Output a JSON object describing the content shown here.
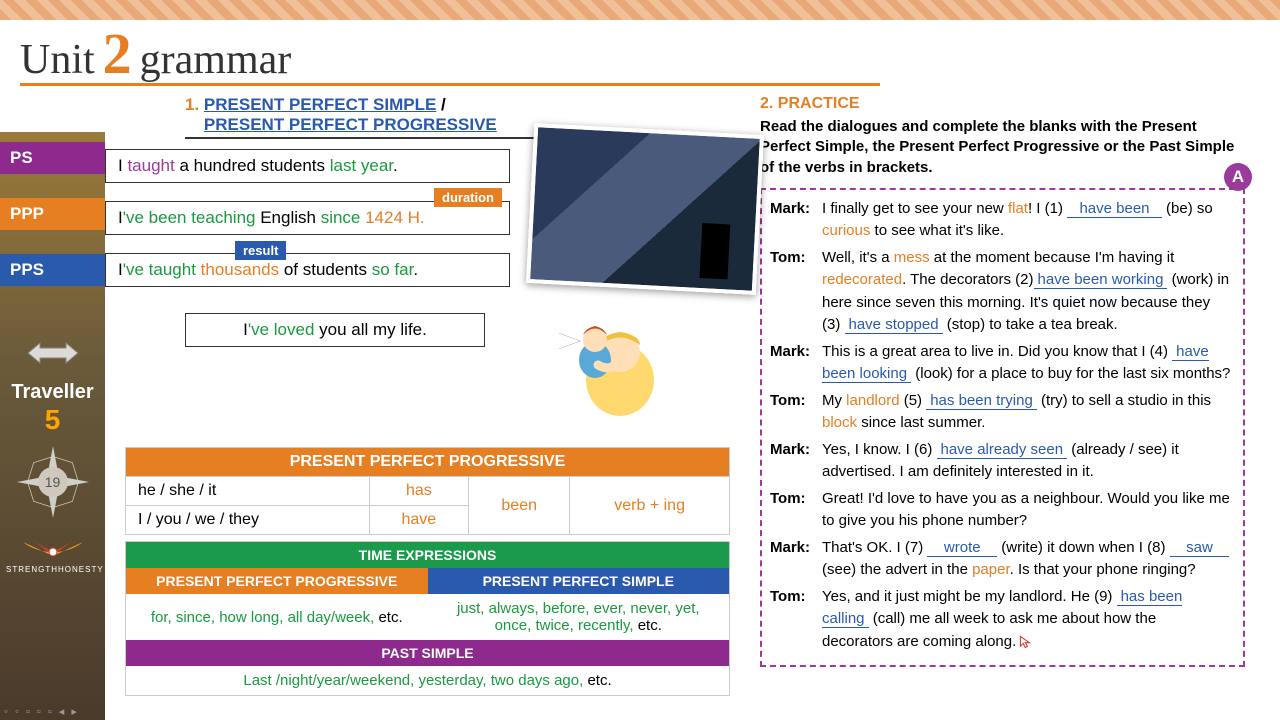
{
  "header": {
    "unit": "Unit",
    "num": "2",
    "title": "grammar"
  },
  "sidebar": {
    "badges": [
      "PS",
      "PPP",
      "PPS"
    ],
    "traveller": "Traveller",
    "traveller_num": "5",
    "page": "19",
    "motto_left": "STRENGTH",
    "motto_right": "HONESTY"
  },
  "section1": {
    "num": "1.",
    "title_a": "PRESENT PERFECT SIMPLE",
    "sep": " / ",
    "title_b": "PRESENT PERFECT PROGRESSIVE",
    "examples": {
      "ps": {
        "pre": "I ",
        "verb": "taught",
        "mid": " a hundred students ",
        "time": "last year",
        "post": "."
      },
      "ppp": {
        "pre": "I",
        "aux": "'ve been teaching",
        "mid": " English ",
        "since": "since",
        "year": " 1424 H.",
        "tag": "duration"
      },
      "pps": {
        "pre": "I",
        "aux": "'ve taught ",
        "highlight": "thousands",
        "mid": " of students ",
        "time": "so far",
        "post": ".",
        "tag": "result"
      },
      "love": {
        "pre": "I",
        "aux": "'ve loved",
        "post": " you all my life."
      }
    }
  },
  "ppp_table": {
    "title": "PRESENT PERFECT PROGRESSIVE",
    "rows": [
      {
        "subj": "he / she / it",
        "aux": "has"
      },
      {
        "subj": "I / you / we / they",
        "aux": "have"
      }
    ],
    "been": "been",
    "verbing": "verb + ing"
  },
  "time_expr": {
    "title": "TIME EXPRESSIONS",
    "ppp_head": "PRESENT PERFECT PROGRESSIVE",
    "pps_head": "PRESENT PERFECT SIMPLE",
    "ppp_body_g": "for, since, how long, all day/week,",
    "ppp_body_etc": " etc.",
    "pps_body_g": "just, always, before, ever, never, yet, once, twice, recently,",
    "pps_body_etc": " etc.",
    "past_head": "PAST SIMPLE",
    "past_body_g": "Last /night/year/weekend, yesterday, two days ago,",
    "past_body_etc": " etc."
  },
  "practice": {
    "title": "2. PRACTICE",
    "inst": "Read the dialogues and complete the blanks with the Present Perfect Simple, the Present Perfect Progressive or the Past Simple of the verbs in brackets.",
    "badge": "A",
    "dlg": [
      {
        "sp": "Mark:",
        "html": "I finally get to see your new <span class='orange'>flat</span>! I (1) <span class='blank'>&nbsp;&nbsp;have been&nbsp;&nbsp;</span> (be) so <span class='orange'>curious</span> to see what it's like."
      },
      {
        "sp": "Tom:",
        "html": "Well, it's a <span class='orange'>mess</span> at the moment because I'm having it <span class='orange'>redecorated</span>. The decorators (2)<span class='blank'>have been working</span> (work) in here since seven this morning. It's quiet now because they (3) <span class='blank'>have stopped</span> (stop) to take a tea break."
      },
      {
        "sp": "Mark:",
        "html": "This is a great area to live in. Did you know that I (4) <span class='blank'>have been looking</span> (look) for a place to buy for the last six months?"
      },
      {
        "sp": "Tom:",
        "html": "My <span class='orange'>landlord</span> (5) <span class='blank'>has been trying</span> (try) to sell a studio in this <span class='orange'>block</span> since last summer."
      },
      {
        "sp": "Mark:",
        "html": "Yes, I know. I (6) <span class='blank'>have already seen</span> (already / see) it advertised. I am definitely interested in it."
      },
      {
        "sp": "Tom:",
        "html": "Great! I'd love to have you as a neighbour. Would you like me to give you his phone number?"
      },
      {
        "sp": "Mark:",
        "html": "That's OK. I (7) <span class='blank'>&nbsp;&nbsp;&nbsp;wrote&nbsp;&nbsp;&nbsp;</span> (write) it down when I (8) <span class='blank'>&nbsp;&nbsp;&nbsp;saw&nbsp;&nbsp;&nbsp;</span> (see) the advert in the <span class='orange'>paper</span>. Is that your phone ringing?"
      },
      {
        "sp": "Tom:",
        "html": "Yes, and it just might be my landlord. He (9) <span class='blank'>has been calling</span> (call) me all week to ask me about how the decorators are coming along.<svg class='cursor' viewBox='0 0 20 20'><path d='M2 2 L2 16 L6 12 L9 18 L12 16 L9 11 L15 11 Z' fill='#fff' stroke='#d43a2a' stroke-width='1.5'/></svg>"
      }
    ]
  },
  "nav_dots": "◦ ◦ ▫ ▫ ▫ ◂ ▸"
}
